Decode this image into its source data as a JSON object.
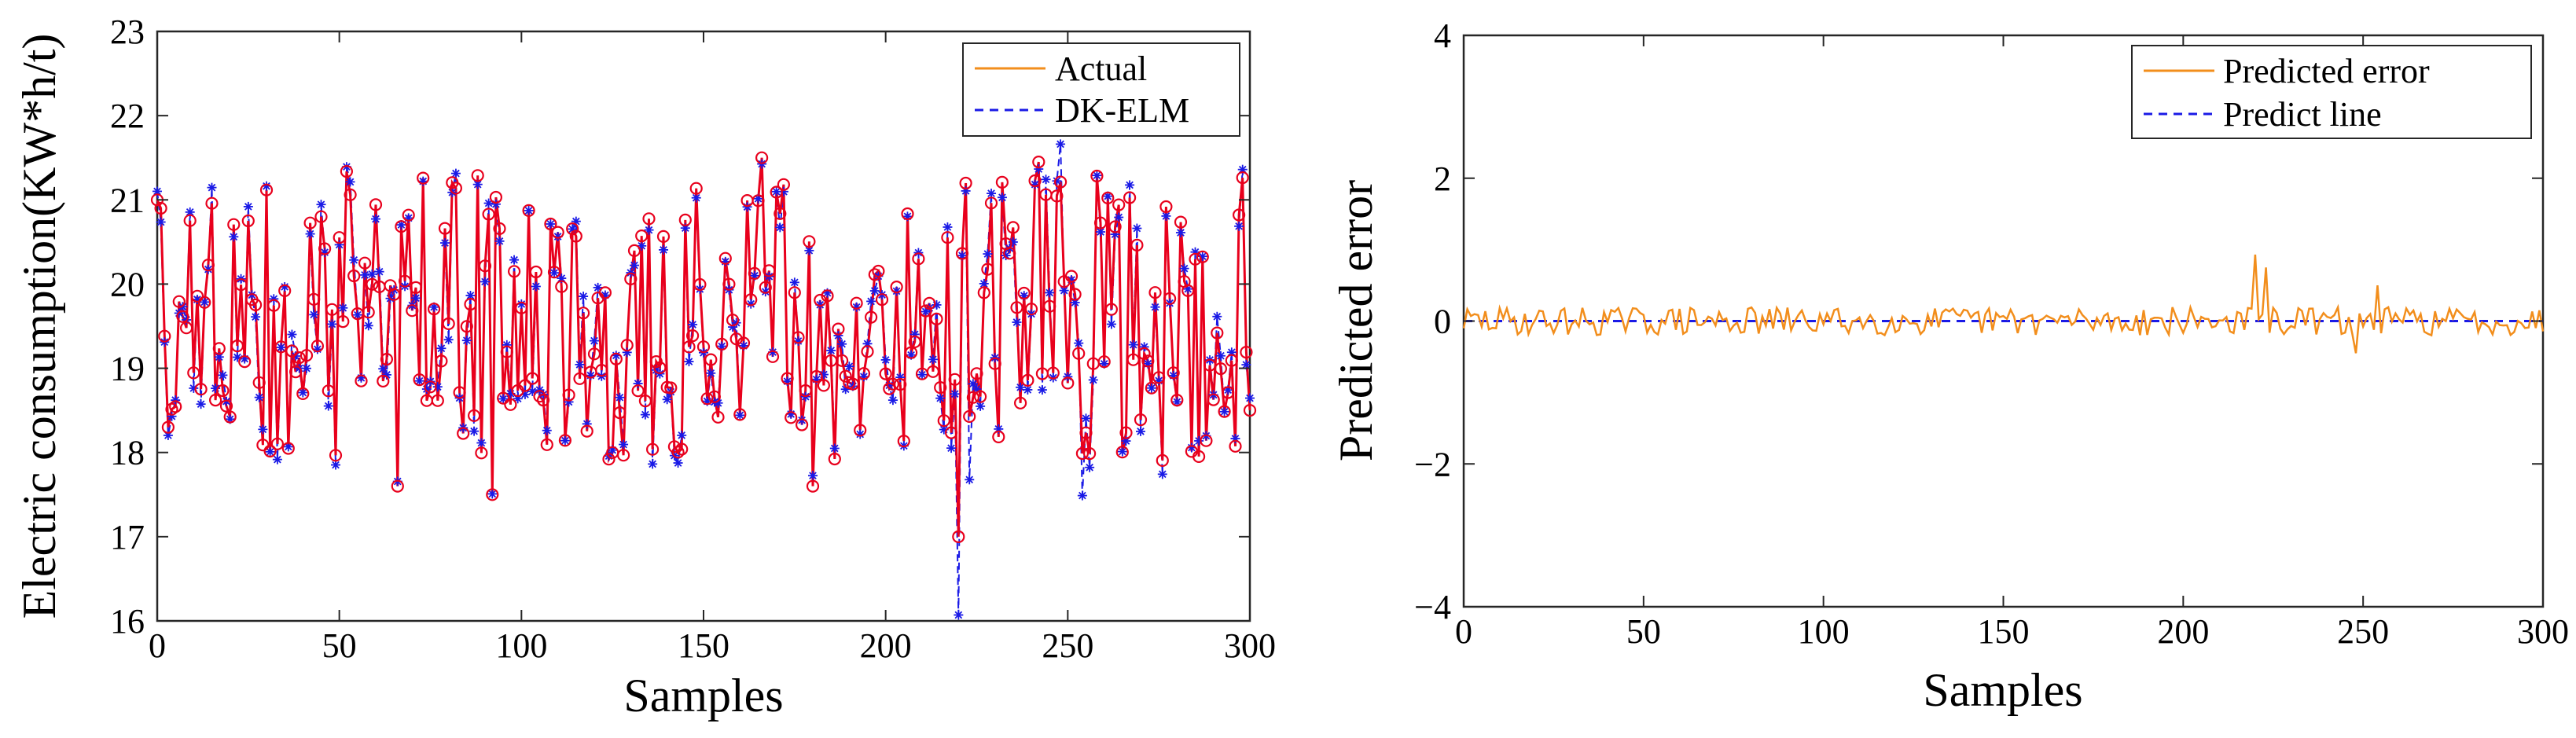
{
  "chart_data": [
    {
      "type": "line",
      "title": "",
      "xlabel": "Samples",
      "ylabel": "Electric consumption(KW*h/t)",
      "xlim": [
        0,
        300
      ],
      "ylim": [
        16,
        23
      ],
      "xticks": [
        0,
        50,
        100,
        150,
        200,
        250,
        300
      ],
      "yticks": [
        16,
        17,
        18,
        19,
        20,
        21,
        22,
        23
      ],
      "grid": false,
      "legend_position": "top-right",
      "series": [
        {
          "name": "Actual",
          "style": "solid line with circle markers",
          "line_color": "#e8001c",
          "marker_color": "#e8001c",
          "legend_color": "#f28e1c",
          "generator_seed": 17,
          "n_points": 300,
          "values_range": [
            17.0,
            21.5
          ],
          "notable_points": [
            {
              "x": 0,
              "y": 21.0
            },
            {
              "x": 1,
              "y": 20.9
            },
            {
              "x": 3,
              "y": 18.3
            },
            {
              "x": 66,
              "y": 17.6
            },
            {
              "x": 92,
              "y": 17.5
            },
            {
              "x": 166,
              "y": 21.5
            },
            {
              "x": 180,
              "y": 17.6
            },
            {
              "x": 220,
              "y": 17.0
            },
            {
              "x": 242,
              "y": 21.45
            },
            {
              "x": 300,
              "y": 18.5
            }
          ]
        },
        {
          "name": "DK-ELM",
          "style": "dashed line with asterisk markers",
          "line_color": "#1a1ae6",
          "marker_color": "#1a1ae6",
          "relation": "Actual minus Predicted error"
        }
      ]
    },
    {
      "type": "line",
      "title": "",
      "xlabel": "Samples",
      "ylabel": "Predicted error",
      "xlim": [
        0,
        300
      ],
      "ylim": [
        -4,
        4
      ],
      "xticks": [
        0,
        50,
        100,
        150,
        200,
        250,
        300
      ],
      "yticks": [
        -4,
        -2,
        0,
        2,
        4
      ],
      "ytick_labels": [
        "−4",
        "−2",
        "0",
        "2",
        "4"
      ],
      "grid": false,
      "legend_position": "top-right",
      "series": [
        {
          "name": "Predicted error",
          "style": "solid",
          "color": "#f28e1c",
          "generator_seed": 29,
          "n_points": 300,
          "typical_amplitude": 0.2,
          "notable_points": [
            {
              "x": 220,
              "y": 0.93
            },
            {
              "x": 223,
              "y": 0.75
            },
            {
              "x": 248,
              "y": -0.45
            },
            {
              "x": 254,
              "y": 0.5
            }
          ]
        },
        {
          "name": "Predict line",
          "style": "dashed",
          "color": "#1a1ae6",
          "constant_value": 0
        }
      ]
    }
  ]
}
